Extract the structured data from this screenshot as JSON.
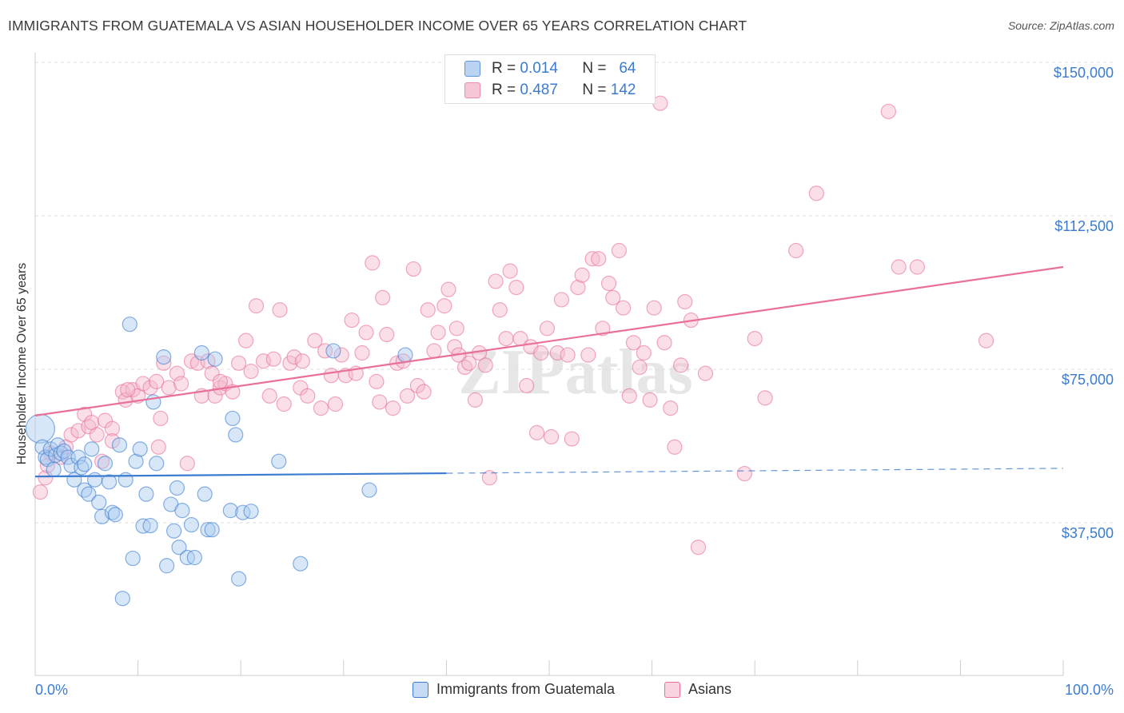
{
  "title": "IMMIGRANTS FROM GUATEMALA VS ASIAN HOUSEHOLDER INCOME OVER 65 YEARS CORRELATION CHART",
  "source": "Source: ZipAtlas.com",
  "watermark": "ZIPatlas",
  "colors": {
    "blue": "#3b7bd0",
    "blue_fill": "#a9c9f0",
    "pink": "#e8709a",
    "pink_fill": "#f5b8cc",
    "grid": "#dddddd"
  },
  "stats": [
    {
      "r_label": "R =",
      "r_value": "0.014",
      "n_label": "N =",
      "n_value": "64"
    },
    {
      "r_label": "R =",
      "r_value": "0.487",
      "n_label": "N =",
      "n_value": "142"
    }
  ],
  "chart_data": {
    "type": "scatter",
    "title": "IMMIGRANTS FROM GUATEMALA VS ASIAN HOUSEHOLDER INCOME OVER 65 YEARS CORRELATION CHART",
    "xlabel": "",
    "ylabel": "Householder Income Over 65 years",
    "xlim": [
      0,
      100
    ],
    "ylim": [
      0,
      155000
    ],
    "x_tick_labels": [
      "0.0%",
      "100.0%"
    ],
    "y_ticks": [
      37500,
      75000,
      112500,
      150000
    ],
    "y_tick_labels": [
      "$37,500",
      "$75,000",
      "$112,500",
      "$150,000"
    ],
    "grid": true,
    "legend_position": "bottom",
    "series": [
      {
        "name": "Immigrants from Guatemala",
        "color": "#3b7bd0",
        "trend": {
          "x0": 0,
          "y0": 48800,
          "x1": 100,
          "y1": 50800,
          "solid_until": 40
        },
        "points": [
          [
            0.5,
            60500
          ],
          [
            0.7,
            56000
          ],
          [
            1.0,
            53500
          ],
          [
            1.2,
            53000
          ],
          [
            1.5,
            55500
          ],
          [
            1.8,
            50500
          ],
          [
            2.0,
            54000
          ],
          [
            2.2,
            56500
          ],
          [
            2.5,
            54500
          ],
          [
            2.8,
            55000
          ],
          [
            3.2,
            53500
          ],
          [
            3.5,
            51500
          ],
          [
            3.8,
            48000
          ],
          [
            4.2,
            53500
          ],
          [
            4.5,
            51000
          ],
          [
            4.8,
            45500
          ],
          [
            5.2,
            44500
          ],
          [
            5.5,
            55500
          ],
          [
            5.8,
            48000
          ],
          [
            6.2,
            42500
          ],
          [
            6.5,
            39000
          ],
          [
            6.8,
            52000
          ],
          [
            7.2,
            47500
          ],
          [
            7.5,
            40000
          ],
          [
            7.8,
            39500
          ],
          [
            8.2,
            56500
          ],
          [
            8.5,
            19000
          ],
          [
            8.8,
            48000
          ],
          [
            9.2,
            86000
          ],
          [
            9.5,
            28800
          ],
          [
            9.8,
            52500
          ],
          [
            10.2,
            55500
          ],
          [
            10.5,
            36700
          ],
          [
            10.8,
            44500
          ],
          [
            11.2,
            36800
          ],
          [
            11.5,
            67000
          ],
          [
            11.8,
            52000
          ],
          [
            12.5,
            78000
          ],
          [
            12.8,
            27000
          ],
          [
            13.2,
            42000
          ],
          [
            13.5,
            35500
          ],
          [
            13.8,
            46000
          ],
          [
            14.0,
            31500
          ],
          [
            14.3,
            40500
          ],
          [
            14.8,
            29000
          ],
          [
            15.2,
            37000
          ],
          [
            15.5,
            29000
          ],
          [
            16.2,
            79000
          ],
          [
            16.5,
            44500
          ],
          [
            16.8,
            35800
          ],
          [
            17.2,
            35800
          ],
          [
            17.5,
            77500
          ],
          [
            19.0,
            40500
          ],
          [
            19.2,
            63000
          ],
          [
            19.5,
            59000
          ],
          [
            19.8,
            23800
          ],
          [
            20.2,
            40000
          ],
          [
            21.0,
            40300
          ],
          [
            23.7,
            52500
          ],
          [
            25.8,
            27500
          ],
          [
            29.0,
            79500
          ],
          [
            32.5,
            45500
          ],
          [
            36.0,
            78500
          ],
          [
            4.8,
            51800
          ]
        ]
      },
      {
        "name": "Asians",
        "color": "#e8709a",
        "trend": {
          "x0": 0,
          "y0": 63700,
          "x1": 100,
          "y1": 100000
        },
        "points": [
          [
            0.5,
            45000
          ],
          [
            1.0,
            48500
          ],
          [
            1.2,
            51500
          ],
          [
            1.5,
            54500
          ],
          [
            2.5,
            53500
          ],
          [
            3.0,
            56000
          ],
          [
            3.5,
            59000
          ],
          [
            4.2,
            60000
          ],
          [
            4.8,
            64000
          ],
          [
            5.2,
            61000
          ],
          [
            5.5,
            62000
          ],
          [
            6.0,
            59000
          ],
          [
            6.8,
            62500
          ],
          [
            7.5,
            60500
          ],
          [
            8.5,
            69500
          ],
          [
            8.8,
            67500
          ],
          [
            9.5,
            70000
          ],
          [
            10.0,
            68500
          ],
          [
            10.5,
            71500
          ],
          [
            11.2,
            70500
          ],
          [
            11.8,
            72000
          ],
          [
            12.2,
            63000
          ],
          [
            12.5,
            76500
          ],
          [
            13.0,
            70500
          ],
          [
            13.8,
            74000
          ],
          [
            14.2,
            71500
          ],
          [
            14.8,
            52000
          ],
          [
            15.2,
            77000
          ],
          [
            15.8,
            76500
          ],
          [
            16.2,
            68500
          ],
          [
            16.8,
            77000
          ],
          [
            17.2,
            74000
          ],
          [
            17.5,
            68500
          ],
          [
            18.0,
            70500
          ],
          [
            18.5,
            71500
          ],
          [
            19.2,
            69500
          ],
          [
            19.8,
            76500
          ],
          [
            20.5,
            82000
          ],
          [
            21.0,
            74500
          ],
          [
            21.5,
            90500
          ],
          [
            22.2,
            77000
          ],
          [
            22.8,
            68500
          ],
          [
            23.2,
            77500
          ],
          [
            23.8,
            89500
          ],
          [
            24.2,
            66500
          ],
          [
            24.8,
            76500
          ],
          [
            25.2,
            78000
          ],
          [
            25.8,
            70500
          ],
          [
            26.5,
            68500
          ],
          [
            27.2,
            82000
          ],
          [
            27.8,
            65500
          ],
          [
            28.2,
            79500
          ],
          [
            28.8,
            73500
          ],
          [
            29.2,
            66500
          ],
          [
            29.8,
            78500
          ],
          [
            30.2,
            73500
          ],
          [
            30.8,
            87000
          ],
          [
            31.2,
            74000
          ],
          [
            31.8,
            79000
          ],
          [
            32.2,
            84000
          ],
          [
            32.8,
            101000
          ],
          [
            33.2,
            72000
          ],
          [
            33.8,
            92500
          ],
          [
            34.2,
            83500
          ],
          [
            34.8,
            65500
          ],
          [
            35.2,
            76500
          ],
          [
            35.8,
            77000
          ],
          [
            36.2,
            68500
          ],
          [
            36.8,
            99500
          ],
          [
            37.2,
            71000
          ],
          [
            37.8,
            69500
          ],
          [
            38.2,
            89500
          ],
          [
            38.8,
            79500
          ],
          [
            39.2,
            84000
          ],
          [
            39.8,
            90500
          ],
          [
            40.2,
            94500
          ],
          [
            40.8,
            80500
          ],
          [
            41.2,
            78500
          ],
          [
            41.8,
            75500
          ],
          [
            42.2,
            76500
          ],
          [
            42.8,
            67500
          ],
          [
            43.2,
            79000
          ],
          [
            43.8,
            76000
          ],
          [
            44.2,
            48500
          ],
          [
            44.8,
            96500
          ],
          [
            45.2,
            89500
          ],
          [
            45.8,
            82500
          ],
          [
            46.2,
            99000
          ],
          [
            46.8,
            95000
          ],
          [
            47.2,
            82500
          ],
          [
            47.8,
            71000
          ],
          [
            48.2,
            80500
          ],
          [
            48.8,
            59500
          ],
          [
            49.2,
            79000
          ],
          [
            49.8,
            85000
          ],
          [
            50.2,
            58500
          ],
          [
            50.8,
            79000
          ],
          [
            51.2,
            92000
          ],
          [
            51.8,
            78500
          ],
          [
            52.2,
            58000
          ],
          [
            52.8,
            95000
          ],
          [
            53.2,
            98000
          ],
          [
            53.8,
            78500
          ],
          [
            54.2,
            102000
          ],
          [
            54.8,
            102000
          ],
          [
            55.2,
            85000
          ],
          [
            55.8,
            96000
          ],
          [
            56.2,
            92500
          ],
          [
            56.8,
            104000
          ],
          [
            57.2,
            90000
          ],
          [
            57.8,
            68500
          ],
          [
            58.2,
            81500
          ],
          [
            58.8,
            75500
          ],
          [
            59.2,
            79000
          ],
          [
            59.8,
            67500
          ],
          [
            60.2,
            90000
          ],
          [
            60.8,
            140000
          ],
          [
            61.2,
            81500
          ],
          [
            61.8,
            65500
          ],
          [
            62.2,
            56000
          ],
          [
            62.8,
            76000
          ],
          [
            63.2,
            91500
          ],
          [
            63.8,
            87000
          ],
          [
            64.5,
            31500
          ],
          [
            65.2,
            74000
          ],
          [
            69.0,
            49500
          ],
          [
            70.0,
            82500
          ],
          [
            71.0,
            68000
          ],
          [
            74.0,
            104000
          ],
          [
            76.0,
            118000
          ],
          [
            83.0,
            138000
          ],
          [
            84.0,
            100000
          ],
          [
            85.8,
            100000
          ],
          [
            92.5,
            82000
          ],
          [
            6.5,
            52500
          ],
          [
            7.5,
            57500
          ],
          [
            9.0,
            70000
          ],
          [
            12.0,
            56000
          ],
          [
            18.0,
            72000
          ],
          [
            26.0,
            77000
          ],
          [
            33.5,
            67000
          ],
          [
            41.0,
            85000
          ]
        ]
      }
    ]
  },
  "legend": [
    {
      "label": "Immigrants from Guatemala"
    },
    {
      "label": "Asians"
    }
  ]
}
